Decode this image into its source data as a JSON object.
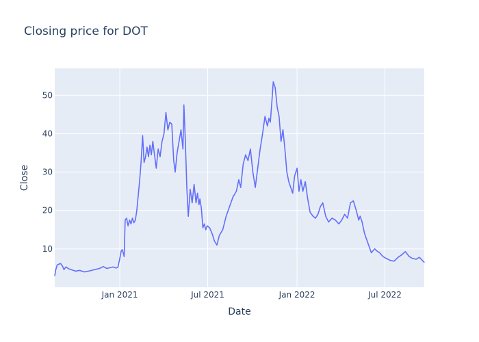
{
  "chart_data": {
    "type": "line",
    "title": "Closing price for DOT",
    "xlabel": "Date",
    "ylabel": "Close",
    "x_range": [
      "2020-08-20",
      "2022-09-20"
    ],
    "ylim": [
      0,
      57
    ],
    "x_ticks": [
      {
        "date": "2021-01-01",
        "label": "Jan 2021"
      },
      {
        "date": "2021-07-01",
        "label": "Jul 2021"
      },
      {
        "date": "2022-01-01",
        "label": "Jan 2022"
      },
      {
        "date": "2022-07-01",
        "label": "Jul 2022"
      }
    ],
    "y_ticks": [
      10,
      20,
      30,
      40,
      50
    ],
    "grid": true,
    "legend": "none",
    "colors": {
      "line": "#636efa",
      "plot_background": "#e5ecf6",
      "grid": "#ffffff",
      "text": "#2a3f5f"
    },
    "series": [
      {
        "x": [
          "2020-08-20",
          "2020-08-22",
          "2020-08-25",
          "2020-08-28",
          "2020-09-01",
          "2020-09-05",
          "2020-09-08",
          "2020-09-12",
          "2020-09-18",
          "2020-09-25",
          "2020-10-02",
          "2020-10-10",
          "2020-10-20",
          "2020-11-01",
          "2020-11-10",
          "2020-11-20",
          "2020-11-28",
          "2020-12-05",
          "2020-12-12",
          "2020-12-18",
          "2020-12-24",
          "2020-12-28",
          "2021-01-01",
          "2021-01-04",
          "2021-01-06",
          "2021-01-08",
          "2021-01-10",
          "2021-01-12",
          "2021-01-15",
          "2021-01-18",
          "2021-01-21",
          "2021-01-24",
          "2021-01-27",
          "2021-01-30",
          "2021-02-02",
          "2021-02-05",
          "2021-02-08",
          "2021-02-11",
          "2021-02-14",
          "2021-02-17",
          "2021-02-20",
          "2021-02-23",
          "2021-02-26",
          "2021-03-01",
          "2021-03-04",
          "2021-03-07",
          "2021-03-10",
          "2021-03-13",
          "2021-03-17",
          "2021-03-21",
          "2021-03-25",
          "2021-03-29",
          "2021-04-02",
          "2021-04-06",
          "2021-04-10",
          "2021-04-14",
          "2021-04-18",
          "2021-04-22",
          "2021-04-25",
          "2021-04-29",
          "2021-05-03",
          "2021-05-07",
          "2021-05-11",
          "2021-05-13",
          "2021-05-16",
          "2021-05-19",
          "2021-05-22",
          "2021-05-26",
          "2021-05-30",
          "2021-06-03",
          "2021-06-07",
          "2021-06-10",
          "2021-06-13",
          "2021-06-15",
          "2021-06-18",
          "2021-06-21",
          "2021-06-24",
          "2021-06-27",
          "2021-06-30",
          "2021-07-05",
          "2021-07-10",
          "2021-07-15",
          "2021-07-20",
          "2021-07-25",
          "2021-08-01",
          "2021-08-08",
          "2021-08-15",
          "2021-08-22",
          "2021-08-29",
          "2021-09-03",
          "2021-09-07",
          "2021-09-12",
          "2021-09-17",
          "2021-09-22",
          "2021-09-27",
          "2021-10-02",
          "2021-10-07",
          "2021-10-12",
          "2021-10-17",
          "2021-10-22",
          "2021-10-27",
          "2021-11-01",
          "2021-11-04",
          "2021-11-07",
          "2021-11-10",
          "2021-11-13",
          "2021-11-17",
          "2021-11-21",
          "2021-11-25",
          "2021-11-29",
          "2021-12-03",
          "2021-12-07",
          "2021-12-11",
          "2021-12-15",
          "2021-12-19",
          "2021-12-23",
          "2021-12-27",
          "2022-01-01",
          "2022-01-05",
          "2022-01-09",
          "2022-01-13",
          "2022-01-18",
          "2022-01-23",
          "2022-01-28",
          "2022-02-03",
          "2022-02-08",
          "2022-02-13",
          "2022-02-18",
          "2022-02-23",
          "2022-03-01",
          "2022-03-07",
          "2022-03-14",
          "2022-03-21",
          "2022-03-28",
          "2022-04-03",
          "2022-04-09",
          "2022-04-15",
          "2022-04-21",
          "2022-04-27",
          "2022-05-03",
          "2022-05-08",
          "2022-05-11",
          "2022-05-15",
          "2022-05-20",
          "2022-05-27",
          "2022-06-03",
          "2022-06-10",
          "2022-06-14",
          "2022-06-20",
          "2022-06-27",
          "2022-07-04",
          "2022-07-12",
          "2022-07-20",
          "2022-07-28",
          "2022-08-05",
          "2022-08-12",
          "2022-08-20",
          "2022-08-27",
          "2022-09-03",
          "2022-09-10",
          "2022-09-16",
          "2022-09-20"
        ],
        "y": [
          3.0,
          4.5,
          5.8,
          6.0,
          6.2,
          5.5,
          4.6,
          5.3,
          4.8,
          4.5,
          4.2,
          4.4,
          4.0,
          4.3,
          4.6,
          4.9,
          5.4,
          4.9,
          5.1,
          5.3,
          5.0,
          5.2,
          7.5,
          9.5,
          9.8,
          9.0,
          8.0,
          17.5,
          18.0,
          16.0,
          17.5,
          16.5,
          18.0,
          16.8,
          17.5,
          20.0,
          24.0,
          28.0,
          33.0,
          39.5,
          32.5,
          34.0,
          36.5,
          34.0,
          37.0,
          34.5,
          38.0,
          35.0,
          31.0,
          36.0,
          34.0,
          38.0,
          40.0,
          45.5,
          41.0,
          43.0,
          42.5,
          33.0,
          30.0,
          35.0,
          38.0,
          41.0,
          36.0,
          47.5,
          38.0,
          26.0,
          18.5,
          25.5,
          22.0,
          26.8,
          22.0,
          24.5,
          21.5,
          23.0,
          20.5,
          15.5,
          16.5,
          15.0,
          16.0,
          15.5,
          14.0,
          12.0,
          11.0,
          13.5,
          15.0,
          18.5,
          21.0,
          23.5,
          25.0,
          28.0,
          26.0,
          32.0,
          34.5,
          33.0,
          36.0,
          30.0,
          26.0,
          31.0,
          36.0,
          40.0,
          44.5,
          42.0,
          44.0,
          43.0,
          48.0,
          53.5,
          52.0,
          47.0,
          44.5,
          38.0,
          41.0,
          36.0,
          30.0,
          27.5,
          26.0,
          24.5,
          29.0,
          31.0,
          25.0,
          28.0,
          25.0,
          27.5,
          23.0,
          19.5,
          18.5,
          18.0,
          19.0,
          21.0,
          22.0,
          18.5,
          17.0,
          18.0,
          17.5,
          16.5,
          17.5,
          19.0,
          18.0,
          22.0,
          22.5,
          20.0,
          17.5,
          18.5,
          17.0,
          14.0,
          11.5,
          9.0,
          10.0,
          9.5,
          9.0,
          8.0,
          7.5,
          7.0,
          6.8,
          7.8,
          8.5,
          9.3,
          8.0,
          7.5,
          7.3,
          7.8,
          7.0,
          6.5
        ]
      }
    ]
  }
}
